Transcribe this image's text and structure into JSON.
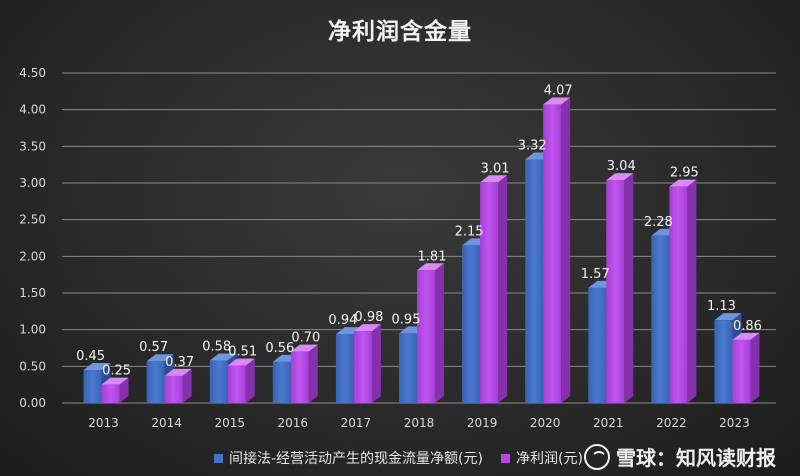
{
  "chart_data": {
    "type": "bar",
    "title": "净利润含金量",
    "categories": [
      "2013",
      "2014",
      "2015",
      "2016",
      "2017",
      "2018",
      "2019",
      "2020",
      "2021",
      "2022",
      "2023"
    ],
    "series": [
      {
        "name": "间接法-经营活动产生的现金流量净额(元)",
        "color": "#4472c4",
        "values": [
          0.45,
          0.57,
          0.58,
          0.56,
          0.94,
          0.95,
          2.15,
          3.32,
          1.57,
          2.28,
          1.13
        ],
        "labels": [
          "0.45",
          "0.57",
          "0.58",
          "0.56",
          "0.94",
          "0.95",
          "2.15",
          "3.32",
          "1.57",
          "2.28",
          "1.13"
        ]
      },
      {
        "name": "净利润(元)",
        "color": "#b845e6",
        "values": [
          0.25,
          0.37,
          0.51,
          0.7,
          0.98,
          1.81,
          3.01,
          4.07,
          3.04,
          2.95,
          0.86
        ],
        "labels": [
          "0.25",
          "0.37",
          "0.51",
          "0.70",
          "0.98",
          "1.81",
          "3.01",
          "4.07",
          "3.04",
          "2.95",
          "0.86"
        ]
      }
    ],
    "yticks": [
      "0.00",
      "0.50",
      "1.00",
      "1.50",
      "2.00",
      "2.50",
      "3.00",
      "3.50",
      "4.00",
      "4.50"
    ],
    "ylim": [
      0,
      4.5
    ],
    "grid": true,
    "legend": "bottom"
  },
  "watermark": {
    "text": "雪球：知风读财报"
  }
}
